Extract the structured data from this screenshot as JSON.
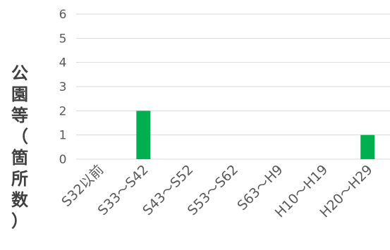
{
  "chart_data": {
    "type": "bar",
    "categories": [
      "S32以前",
      "S33～S42",
      "S43～S52",
      "S53～S62",
      "S63～H9",
      "H10～H19",
      "H20～H29"
    ],
    "values": [
      0,
      2,
      0,
      0,
      0,
      0,
      1
    ],
    "title": "",
    "xlabel": "",
    "ylabel": "公園等（箇所数）",
    "ylim": [
      0,
      6
    ],
    "yticks": [
      0,
      1,
      2,
      3,
      4,
      5,
      6
    ],
    "grid": true,
    "bar_color": "#00b050",
    "grid_color": "#d9d9d9"
  }
}
